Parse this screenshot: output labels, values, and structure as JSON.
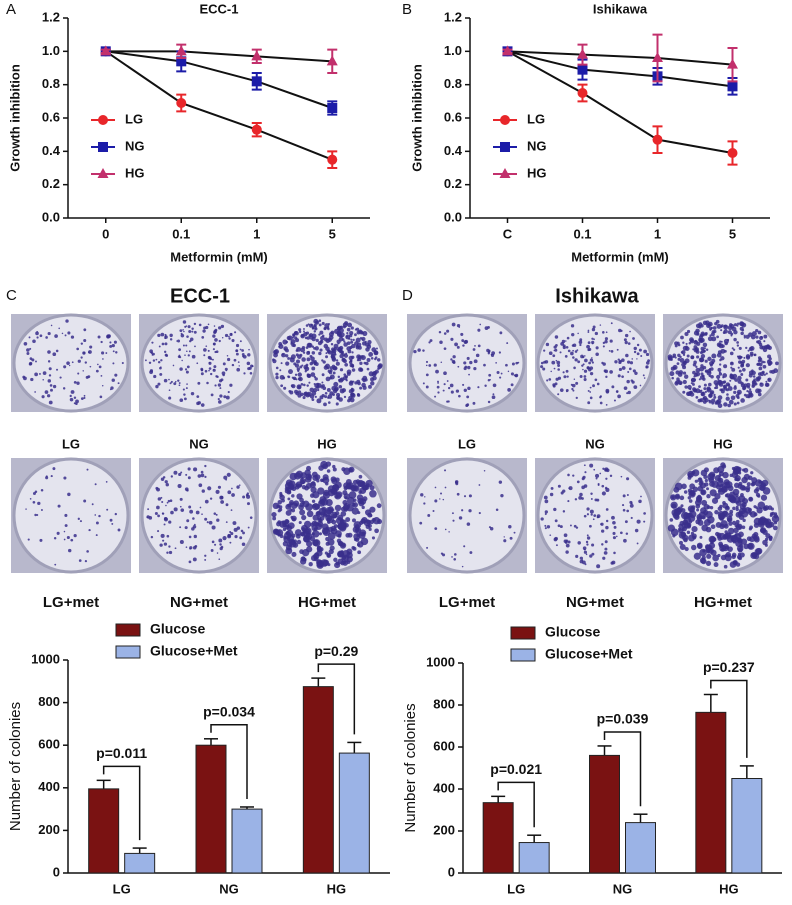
{
  "chart_data": [
    {
      "type": "line",
      "panel": "A",
      "title": "ECC-1",
      "x_label": "Metformin (mM)",
      "y_label": "Growth inhibition",
      "categories": [
        "0",
        "0.1",
        "1",
        "5"
      ],
      "ylim": [
        0,
        1.2
      ],
      "yticks": [
        {
          "value": 0,
          "label": "0.0"
        },
        0.2,
        0.4,
        0.6,
        0.8,
        {
          "value": 1,
          "label": "1.0"
        },
        1.2
      ],
      "series": [
        {
          "name": "LG",
          "color": "#e8262a",
          "marker": "circle",
          "values": [
            1.0,
            0.69,
            0.53,
            0.35
          ],
          "errors": [
            0.01,
            0.05,
            0.04,
            0.05
          ]
        },
        {
          "name": "NG",
          "color": "#1c1ca8",
          "marker": "square",
          "values": [
            1.0,
            0.94,
            0.82,
            0.66
          ],
          "errors": [
            0.01,
            0.06,
            0.05,
            0.04
          ]
        },
        {
          "name": "HG",
          "color": "#c2306c",
          "marker": "triangle",
          "values": [
            1.0,
            1.0,
            0.97,
            0.94
          ],
          "errors": [
            0.01,
            0.04,
            0.04,
            0.07
          ]
        }
      ]
    },
    {
      "type": "line",
      "panel": "B",
      "title": "Ishikawa",
      "x_label": "Metformin (mM)",
      "y_label": "Growth inhibition",
      "categories": [
        "C",
        "0.1",
        "1",
        "5"
      ],
      "ylim": [
        0,
        1.2
      ],
      "yticks": [
        {
          "value": 0,
          "label": "0.0"
        },
        0.2,
        0.4,
        0.6,
        0.8,
        {
          "value": 1,
          "label": "1.0"
        },
        1.2
      ],
      "series": [
        {
          "name": "LG",
          "color": "#e8262a",
          "marker": "circle",
          "values": [
            1.0,
            0.75,
            0.47,
            0.39
          ],
          "errors": [
            0.01,
            0.05,
            0.08,
            0.07
          ]
        },
        {
          "name": "NG",
          "color": "#1c1ca8",
          "marker": "square",
          "values": [
            1.0,
            0.89,
            0.85,
            0.79
          ],
          "errors": [
            0.01,
            0.06,
            0.05,
            0.05
          ]
        },
        {
          "name": "HG",
          "color": "#c2306c",
          "marker": "triangle",
          "values": [
            1.0,
            0.98,
            0.96,
            0.92
          ],
          "errors": [
            0.01,
            0.06,
            0.14,
            0.1
          ]
        }
      ]
    },
    {
      "type": "bar",
      "panel": "C",
      "title": "ECC-1",
      "y_label": "Number of colonies",
      "photo_labels": [
        "LG",
        "NG",
        "HG",
        "LG+met",
        "NG+met",
        "HG+met"
      ],
      "categories": [
        "LG",
        "NG",
        "HG"
      ],
      "ylim": [
        0,
        1000
      ],
      "yticks": [
        0,
        200,
        400,
        600,
        800,
        1000
      ],
      "series": [
        {
          "name": "Glucose",
          "color": "#7a1212",
          "values": [
            395,
            600,
            875
          ],
          "errors": [
            40,
            30,
            40
          ]
        },
        {
          "name": "Glucose+Met",
          "color": "#9bb3e6",
          "values": [
            92,
            300,
            563
          ],
          "errors": [
            25,
            10,
            50
          ]
        }
      ],
      "annotations": [
        "p=0.011",
        "p=0.034",
        "p=0.29"
      ]
    },
    {
      "type": "bar",
      "panel": "D",
      "title": "Ishikawa",
      "y_label": "Number of colonies",
      "photo_labels": [
        "LG",
        "NG",
        "HG",
        "LG+met",
        "NG+met",
        "HG+met"
      ],
      "categories": [
        "LG",
        "NG",
        "HG"
      ],
      "ylim": [
        0,
        1000
      ],
      "yticks": [
        0,
        200,
        400,
        600,
        800,
        1000
      ],
      "series": [
        {
          "name": "Glucose",
          "color": "#7a1212",
          "values": [
            335,
            560,
            765
          ],
          "errors": [
            30,
            45,
            85
          ]
        },
        {
          "name": "Glucose+Met",
          "color": "#9bb3e6",
          "values": [
            145,
            240,
            450
          ],
          "errors": [
            35,
            40,
            60
          ]
        }
      ],
      "annotations": [
        "p=0.021",
        "p=0.039",
        "p=0.237"
      ]
    }
  ]
}
